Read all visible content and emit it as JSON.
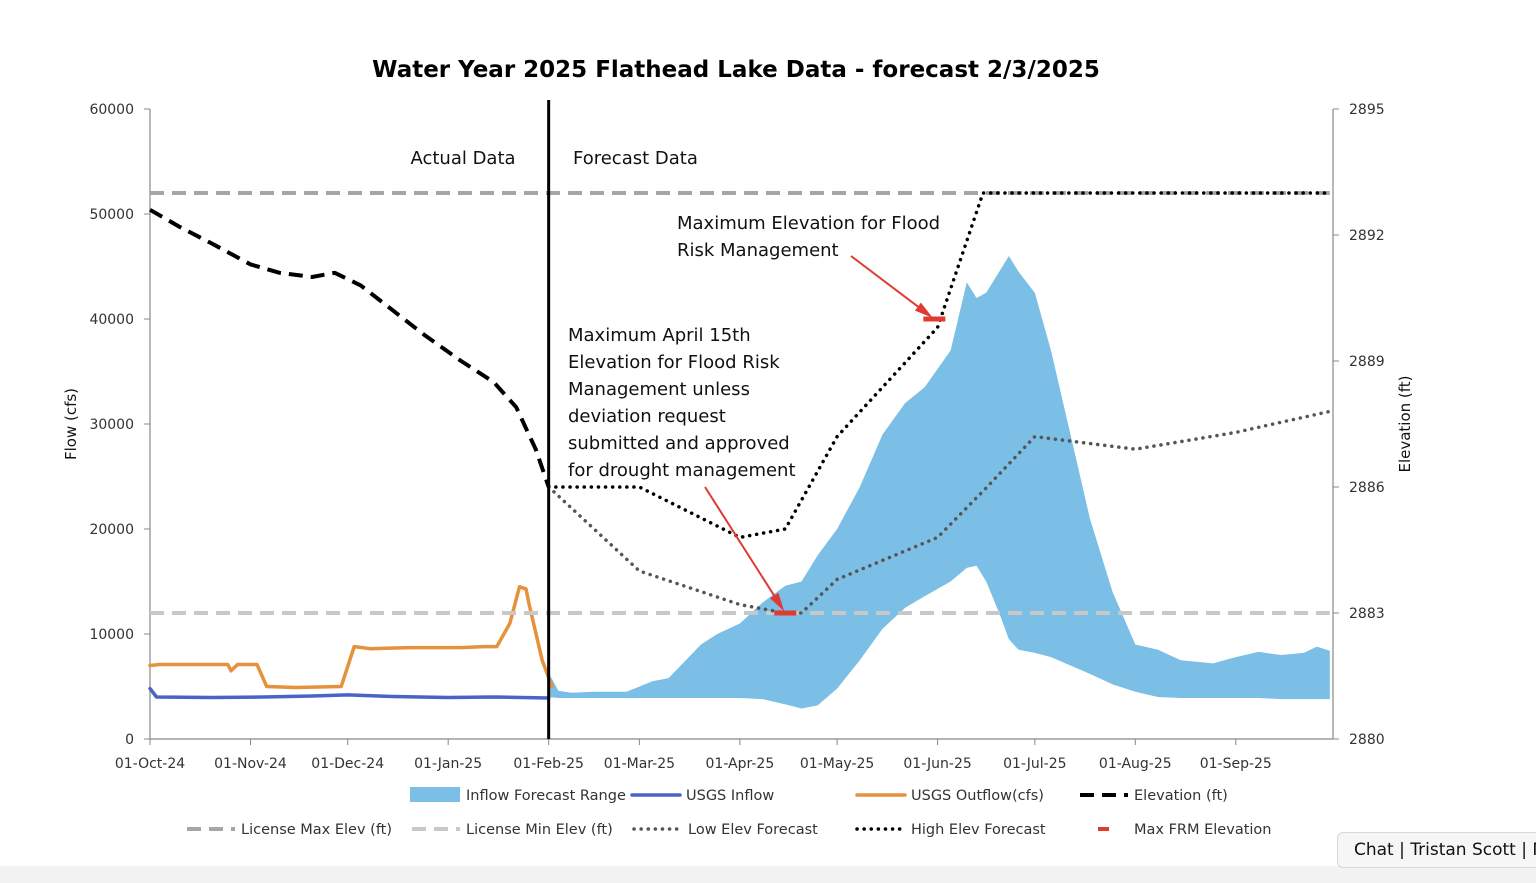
{
  "chart_data": {
    "type": "area",
    "title": "Water Year 2025 Flathead Lake Data - forecast 2/3/2025",
    "ylabel": "Flow (cfs)",
    "y2label": "Elevation (ft)",
    "ylim": [
      0,
      60000
    ],
    "y2lim": [
      2880,
      2895
    ],
    "xlim": [
      "2024-10-01",
      "2025-09-30"
    ],
    "yticks": [
      "0",
      "10000",
      "20000",
      "30000",
      "40000",
      "50000",
      "60000"
    ],
    "y2ticks": [
      "2880",
      "2883",
      "2886",
      "2889",
      "2892",
      "2895"
    ],
    "xticks": [
      {
        "date": "2024-10-01",
        "label": "01-Oct-24"
      },
      {
        "date": "2024-11-01",
        "label": "01-Nov-24"
      },
      {
        "date": "2024-12-01",
        "label": "01-Dec-24"
      },
      {
        "date": "2025-01-01",
        "label": "01-Jan-25"
      },
      {
        "date": "2025-02-01",
        "label": "01-Feb-25"
      },
      {
        "date": "2025-03-01",
        "label": "01-Mar-25"
      },
      {
        "date": "2025-04-01",
        "label": "01-Apr-25"
      },
      {
        "date": "2025-05-01",
        "label": "01-May-25"
      },
      {
        "date": "2025-06-01",
        "label": "01-Jun-25"
      },
      {
        "date": "2025-07-01",
        "label": "01-Jul-25"
      },
      {
        "date": "2025-08-01",
        "label": "01-Aug-25"
      },
      {
        "date": "2025-09-01",
        "label": "01-Sep-25"
      }
    ],
    "divider_date": "2025-02-01",
    "region_labels": {
      "left": "Actual Data",
      "right": "Forecast Data"
    },
    "series": [
      {
        "name": "Inflow Forecast Range",
        "color": "#7bbfe6",
        "axis": "flow",
        "style": "band",
        "x": [
          "2025-02-01",
          "2025-02-04",
          "2025-02-08",
          "2025-02-15",
          "2025-02-25",
          "2025-03-05",
          "2025-03-10",
          "2025-03-20",
          "2025-03-25",
          "2025-04-01",
          "2025-04-08",
          "2025-04-15",
          "2025-04-20",
          "2025-04-25",
          "2025-05-01",
          "2025-05-08",
          "2025-05-15",
          "2025-05-22",
          "2025-05-28",
          "2025-06-05",
          "2025-06-10",
          "2025-06-13",
          "2025-06-16",
          "2025-06-20",
          "2025-06-23",
          "2025-06-26",
          "2025-07-01",
          "2025-07-06",
          "2025-07-12",
          "2025-07-18",
          "2025-07-25",
          "2025-08-01",
          "2025-08-08",
          "2025-08-15",
          "2025-08-25",
          "2025-09-01",
          "2025-09-08",
          "2025-09-15",
          "2025-09-22",
          "2025-09-26",
          "2025-09-30"
        ],
        "low": [
          4000,
          3900,
          3900,
          3900,
          3900,
          3900,
          3900,
          3900,
          3900,
          3900,
          3800,
          3300,
          2900,
          3200,
          4800,
          7500,
          10500,
          12500,
          13600,
          15000,
          16300,
          16500,
          15000,
          12000,
          9500,
          8500,
          8200,
          7800,
          7000,
          6200,
          5200,
          4500,
          4000,
          3900,
          3900,
          3900,
          3900,
          3800,
          3800,
          3800,
          3800
        ],
        "high": [
          6300,
          4600,
          4400,
          4500,
          4500,
          5500,
          5800,
          9000,
          10000,
          11000,
          13000,
          14600,
          15000,
          17500,
          20000,
          24000,
          29000,
          32000,
          33500,
          37000,
          43500,
          42000,
          42500,
          44500,
          46000,
          44500,
          42500,
          37000,
          29000,
          21000,
          14000,
          9000,
          8500,
          7500,
          7200,
          7800,
          8300,
          8000,
          8200,
          8800,
          8400
        ]
      },
      {
        "name": "USGS Inflow",
        "color": "#4a63c8",
        "axis": "flow",
        "style": "solid",
        "x": [
          "2024-10-01",
          "2024-10-03",
          "2024-10-20",
          "2024-11-05",
          "2024-11-20",
          "2024-12-01",
          "2024-12-15",
          "2025-01-01",
          "2025-01-15",
          "2025-02-01"
        ],
        "y": [
          4800,
          4000,
          3950,
          4000,
          4100,
          4200,
          4050,
          3950,
          4000,
          3900
        ]
      },
      {
        "name": "USGS Outflow(cfs)",
        "color": "#e6913b",
        "axis": "flow",
        "style": "solid",
        "x": [
          "2024-10-01",
          "2024-10-04",
          "2024-10-25",
          "2024-10-26",
          "2024-10-28",
          "2024-11-01",
          "2024-11-03",
          "2024-11-06",
          "2024-11-15",
          "2024-11-29",
          "2024-12-03",
          "2024-12-08",
          "2024-12-20",
          "2025-01-05",
          "2025-01-12",
          "2025-01-16",
          "2025-01-20",
          "2025-01-23",
          "2025-01-25",
          "2025-01-26",
          "2025-01-30",
          "2025-02-02"
        ],
        "y": [
          7000,
          7100,
          7100,
          6500,
          7100,
          7100,
          7100,
          5000,
          4900,
          5000,
          8800,
          8600,
          8700,
          8700,
          8800,
          8800,
          11000,
          14500,
          14300,
          12800,
          7500,
          5000
        ]
      },
      {
        "name": "Elevation (ft)",
        "color": "#000000",
        "axis": "elevation",
        "style": "dash",
        "x": [
          "2024-10-01",
          "2024-10-10",
          "2024-10-20",
          "2024-11-01",
          "2024-11-10",
          "2024-11-20",
          "2024-11-27",
          "2024-12-05",
          "2024-12-15",
          "2024-12-25",
          "2025-01-05",
          "2025-01-15",
          "2025-01-22",
          "2025-01-28",
          "2025-02-01"
        ],
        "y": [
          2892.6,
          2892.2,
          2891.8,
          2891.3,
          2891.1,
          2891.0,
          2891.1,
          2890.8,
          2890.2,
          2889.6,
          2889.0,
          2888.5,
          2887.9,
          2886.9,
          2886.0
        ]
      },
      {
        "name": "License Max Elev (ft)",
        "color": "#a6a6a6",
        "axis": "elevation",
        "style": "dash",
        "x": [
          "2024-10-01",
          "2025-09-30"
        ],
        "y": [
          2893,
          2893
        ]
      },
      {
        "name": "License Min Elev (ft)",
        "color": "#c8c8c8",
        "axis": "elevation",
        "style": "dash",
        "x": [
          "2024-10-01",
          "2025-09-30"
        ],
        "y": [
          2883,
          2883
        ]
      },
      {
        "name": "Low Elev Forecast",
        "color": "#555555",
        "axis": "elevation",
        "style": "dot",
        "x": [
          "2025-02-01",
          "2025-03-01",
          "2025-04-01",
          "2025-04-15",
          "2025-04-20",
          "2025-05-01",
          "2025-06-01",
          "2025-06-15",
          "2025-07-01",
          "2025-08-01",
          "2025-09-01",
          "2025-09-30"
        ],
        "y": [
          2886.0,
          2884.0,
          2883.2,
          2883.0,
          2883.0,
          2883.8,
          2884.8,
          2885.9,
          2887.2,
          2886.9,
          2887.3,
          2887.8
        ]
      },
      {
        "name": "High Elev Forecast",
        "color": "#000000",
        "axis": "elevation",
        "style": "dot",
        "x": [
          "2025-02-01",
          "2025-03-01",
          "2025-04-01",
          "2025-04-15",
          "2025-05-01",
          "2025-06-01",
          "2025-06-15",
          "2025-07-01",
          "2025-09-30"
        ],
        "y": [
          2886.0,
          2886.0,
          2884.8,
          2885.0,
          2887.2,
          2889.8,
          2893.0,
          2893.0,
          2893.0
        ]
      },
      {
        "name": "Max FRM Elevation",
        "color": "#e03a32",
        "axis": "elevation",
        "style": "marker",
        "x": [
          "2025-04-15",
          "2025-05-31"
        ],
        "y": [
          2883.0,
          2890.0
        ]
      }
    ],
    "annotations": [
      {
        "lines": [
          "Maximum Elevation for Flood",
          "Risk Management"
        ],
        "arrow_to": {
          "date": "2025-05-31",
          "elev": 2890.0
        }
      },
      {
        "lines": [
          "Maximum April 15th",
          "Elevation for Flood Risk",
          "Management unless",
          "deviation request",
          "submitted and approved",
          "for drought management"
        ],
        "arrow_to": {
          "date": "2025-04-15",
          "elev": 2883.0
        }
      }
    ],
    "legend": {
      "placement": "bottom",
      "row1": [
        "Inflow Forecast Range",
        "USGS Inflow",
        "USGS Outflow(cfs)",
        "Elevation (ft)"
      ],
      "row2": [
        "License Max Elev (ft)",
        "License Min Elev (ft)",
        "Low Elev Forecast",
        "High Elev Forecast",
        "Max FRM Elevation"
      ]
    }
  },
  "chat_tab": {
    "label": "Chat | Tristan Scott | M"
  }
}
